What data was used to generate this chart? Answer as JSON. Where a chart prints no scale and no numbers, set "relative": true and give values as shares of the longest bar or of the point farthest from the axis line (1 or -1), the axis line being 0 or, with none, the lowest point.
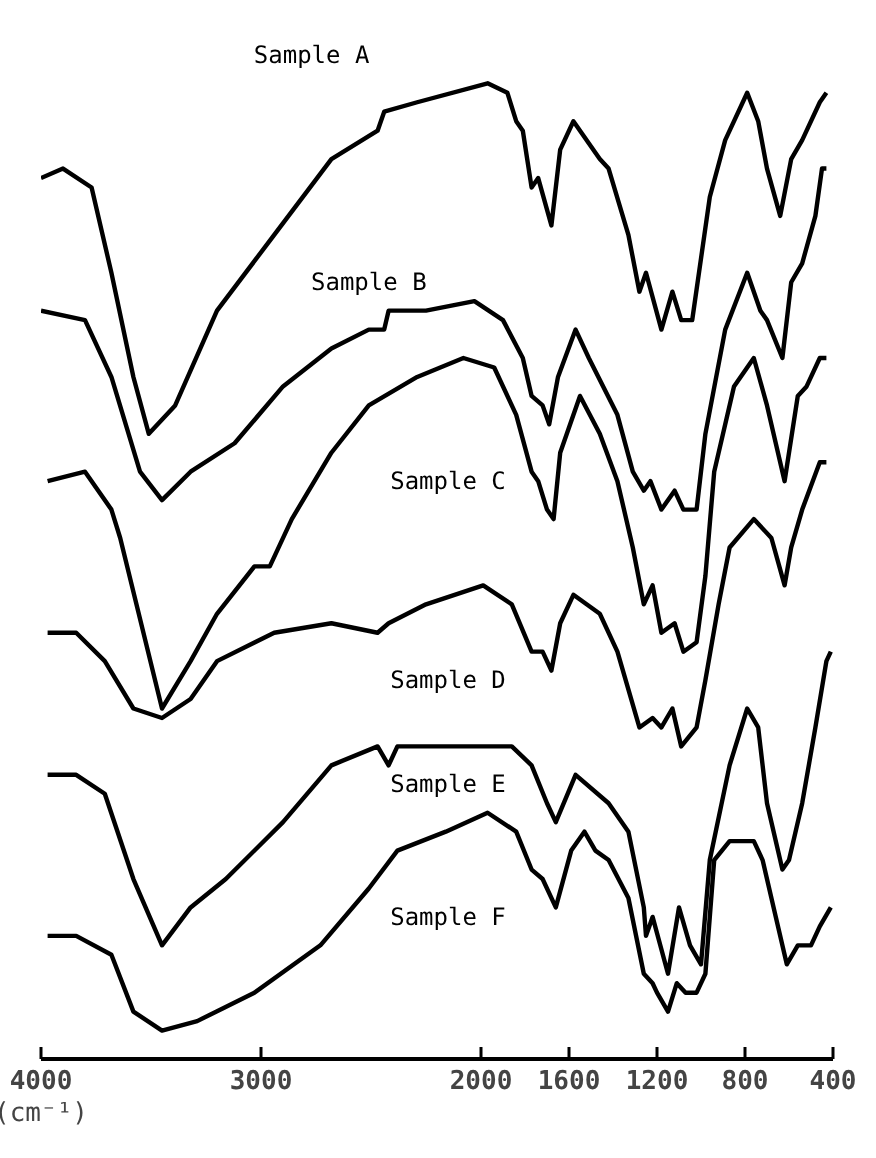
{
  "chart_data": {
    "type": "line",
    "relative": true,
    "xlabel": "(cm⁻¹)",
    "xlim": [
      4000,
      400
    ],
    "xticks": [
      4000,
      3000,
      2000,
      1600,
      1200,
      800,
      400
    ],
    "grid": false,
    "marker": "none",
    "line_style": "solid",
    "series": [
      {
        "name": "Sample A",
        "color": "#000000",
        "x": [
          4000,
          3900,
          3770,
          3680,
          3580,
          3510,
          3390,
          3200,
          2940,
          2680,
          2470,
          2440,
          2290,
          1970,
          1880,
          1840,
          1810,
          1790,
          1770,
          1740,
          1680,
          1640,
          1580,
          1460,
          1420,
          1330,
          1280,
          1250,
          1180,
          1130,
          1090,
          1040,
          960,
          890,
          790,
          740,
          700,
          640,
          590,
          540,
          460,
          430
        ],
        "values": [
          0.9,
          0.91,
          0.89,
          0.8,
          0.69,
          0.63,
          0.66,
          0.76,
          0.84,
          0.92,
          0.95,
          0.97,
          0.98,
          1.0,
          0.99,
          0.96,
          0.95,
          0.92,
          0.89,
          0.9,
          0.85,
          0.93,
          0.96,
          0.92,
          0.91,
          0.84,
          0.78,
          0.8,
          0.74,
          0.78,
          0.75,
          0.75,
          0.88,
          0.94,
          0.99,
          0.96,
          0.91,
          0.86,
          0.92,
          0.94,
          0.98,
          0.99
        ]
      },
      {
        "name": "Sample B",
        "color": "#000000",
        "x": [
          4000,
          3800,
          3680,
          3550,
          3450,
          3320,
          3120,
          2900,
          2680,
          2510,
          2440,
          2420,
          2250,
          2030,
          1900,
          1810,
          1770,
          1720,
          1690,
          1650,
          1570,
          1510,
          1380,
          1310,
          1260,
          1230,
          1180,
          1120,
          1080,
          1020,
          980,
          890,
          790,
          730,
          700,
          630,
          590,
          540,
          480,
          450,
          430
        ],
        "values": [
          0.76,
          0.75,
          0.69,
          0.59,
          0.56,
          0.59,
          0.62,
          0.68,
          0.72,
          0.74,
          0.74,
          0.76,
          0.76,
          0.77,
          0.75,
          0.71,
          0.67,
          0.66,
          0.64,
          0.69,
          0.74,
          0.71,
          0.65,
          0.59,
          0.57,
          0.58,
          0.55,
          0.57,
          0.55,
          0.55,
          0.63,
          0.74,
          0.8,
          0.76,
          0.75,
          0.71,
          0.79,
          0.81,
          0.86,
          0.91,
          0.91
        ]
      },
      {
        "name": "Sample C",
        "color": "#000000",
        "x": [
          3970,
          3800,
          3680,
          3640,
          3450,
          3320,
          3200,
          3030,
          2960,
          2860,
          2680,
          2510,
          2290,
          2080,
          1940,
          1840,
          1770,
          1740,
          1700,
          1670,
          1640,
          1550,
          1460,
          1380,
          1310,
          1260,
          1220,
          1180,
          1120,
          1080,
          1020,
          980,
          940,
          850,
          760,
          700,
          620,
          560,
          520,
          460,
          430
        ],
        "values": [
          0.58,
          0.59,
          0.55,
          0.52,
          0.34,
          0.39,
          0.44,
          0.49,
          0.49,
          0.54,
          0.61,
          0.66,
          0.69,
          0.71,
          0.7,
          0.65,
          0.59,
          0.58,
          0.55,
          0.54,
          0.61,
          0.67,
          0.63,
          0.58,
          0.51,
          0.45,
          0.47,
          0.42,
          0.43,
          0.4,
          0.41,
          0.48,
          0.59,
          0.68,
          0.71,
          0.66,
          0.58,
          0.67,
          0.68,
          0.71,
          0.71
        ]
      },
      {
        "name": "Sample D",
        "color": "#000000",
        "x": [
          3970,
          3840,
          3710,
          3580,
          3450,
          3320,
          3200,
          2940,
          2680,
          2470,
          2420,
          2250,
          1990,
          1860,
          1770,
          1720,
          1680,
          1640,
          1580,
          1460,
          1380,
          1280,
          1220,
          1180,
          1130,
          1090,
          1020,
          980,
          920,
          870,
          760,
          680,
          620,
          590,
          540,
          460,
          430
        ],
        "values": [
          0.42,
          0.42,
          0.39,
          0.34,
          0.33,
          0.35,
          0.39,
          0.42,
          0.43,
          0.42,
          0.43,
          0.45,
          0.47,
          0.45,
          0.4,
          0.4,
          0.38,
          0.43,
          0.46,
          0.44,
          0.4,
          0.32,
          0.33,
          0.32,
          0.34,
          0.3,
          0.32,
          0.37,
          0.45,
          0.51,
          0.54,
          0.52,
          0.47,
          0.51,
          0.55,
          0.6,
          0.6
        ]
      },
      {
        "name": "Sample E",
        "color": "#000000",
        "x": [
          3970,
          3840,
          3710,
          3580,
          3450,
          3320,
          3160,
          2900,
          2680,
          2470,
          2420,
          2380,
          2080,
          1860,
          1770,
          1700,
          1660,
          1570,
          1420,
          1330,
          1260,
          1250,
          1220,
          1150,
          1100,
          1050,
          1000,
          960,
          870,
          790,
          740,
          700,
          630,
          600,
          540,
          480,
          430,
          410
        ],
        "values": [
          0.27,
          0.27,
          0.25,
          0.16,
          0.09,
          0.13,
          0.16,
          0.22,
          0.28,
          0.3,
          0.28,
          0.3,
          0.3,
          0.3,
          0.28,
          0.24,
          0.22,
          0.27,
          0.24,
          0.21,
          0.13,
          0.1,
          0.12,
          0.06,
          0.13,
          0.09,
          0.07,
          0.18,
          0.28,
          0.34,
          0.32,
          0.24,
          0.17,
          0.18,
          0.24,
          0.32,
          0.39,
          0.4
        ]
      },
      {
        "name": "Sample F",
        "color": "#000000",
        "x": [
          3970,
          3840,
          3680,
          3580,
          3450,
          3290,
          3030,
          2730,
          2510,
          2380,
          2160,
          1970,
          1840,
          1770,
          1720,
          1660,
          1590,
          1530,
          1480,
          1420,
          1330,
          1260,
          1220,
          1200,
          1150,
          1110,
          1070,
          1020,
          980,
          940,
          870,
          760,
          720,
          660,
          610,
          560,
          500,
          460,
          410
        ],
        "values": [
          0.1,
          0.1,
          0.08,
          0.02,
          0,
          0.01,
          0.04,
          0.09,
          0.15,
          0.19,
          0.21,
          0.23,
          0.21,
          0.17,
          0.16,
          0.13,
          0.19,
          0.21,
          0.19,
          0.18,
          0.14,
          0.06,
          0.05,
          0.04,
          0.02,
          0.05,
          0.04,
          0.04,
          0.06,
          0.18,
          0.2,
          0.2,
          0.18,
          0.12,
          0.07,
          0.09,
          0.09,
          0.11,
          0.13
        ]
      }
    ]
  }
}
